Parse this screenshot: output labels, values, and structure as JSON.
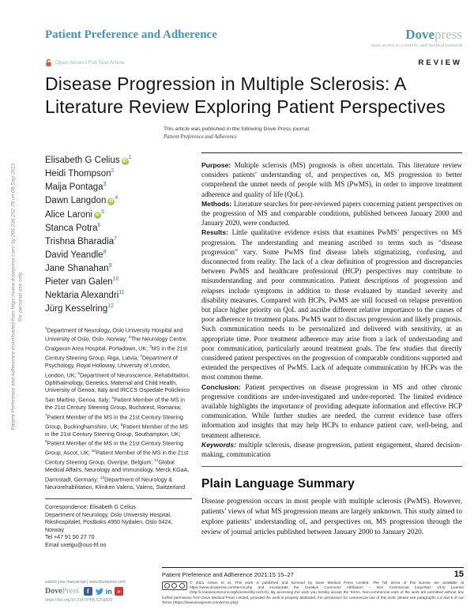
{
  "watermark": {
    "line1": "Patient Preference and Adherence downloaded from https://www.dovepress.com/ by 204.236.252.78 on 08-Sep-2021",
    "line2": "For personal use only."
  },
  "header": {
    "journal_name": "Patient Preference and Adherence",
    "brand_dove": "Dove",
    "brand_press": "press",
    "tagline": "open access to scientific and medical research",
    "open_access_label": "Open Access Full Text Article",
    "article_type": "REVIEW"
  },
  "article": {
    "title": "Disease Progression in Multiple Sclerosis: A Literature Review Exploring Patient Perspectives",
    "published_in_line": "This article was published in the following Dove Press journal:",
    "published_in_journal": "Patient Preference and Adherence"
  },
  "icons": {
    "orcid_text": "iD",
    "facebook_glyph": "f",
    "linkedin_glyph": "in"
  },
  "authors": [
    {
      "name": "Elisabeth G Celius",
      "sup": "1",
      "orcid": true
    },
    {
      "name": "Heidi Thompson",
      "sup": "2",
      "orcid": false
    },
    {
      "name": "Maija Pontaga",
      "sup": "3",
      "orcid": false
    },
    {
      "name": "Dawn Langdon",
      "sup": "4",
      "orcid": true
    },
    {
      "name": "Alice Laroni",
      "sup": "5",
      "orcid": true
    },
    {
      "name": "Stanca Potra",
      "sup": "6",
      "orcid": false
    },
    {
      "name": "Trishna Bharadia",
      "sup": "7",
      "orcid": false
    },
    {
      "name": "David Yeandle",
      "sup": "8",
      "orcid": false
    },
    {
      "name": "Jane Shanahan",
      "sup": "9",
      "orcid": false
    },
    {
      "name": "Pieter van Galen",
      "sup": "10",
      "orcid": false
    },
    {
      "name": "Nektaria Alexandri",
      "sup": "11",
      "orcid": false
    },
    {
      "name": "Jürg Kesselring",
      "sup": "12",
      "orcid": false
    }
  ],
  "affiliations": [
    {
      "sup": "1",
      "text": "Department of Neurology, Oslo University Hospital and University of Oslo, Oslo, Norway; "
    },
    {
      "sup": "2",
      "text": "The Neurology Centre, Craigavon Area Hospital, Portadown, UK; "
    },
    {
      "sup": "3",
      "text": "MS in the 21st Century Steering Group, Riga, Latvia; "
    },
    {
      "sup": "4",
      "text": "Department of Psychology, Royal Holloway, University of London, London, UK; "
    },
    {
      "sup": "5",
      "text": "Department of Neuroscience, Rehabilitation, Ophthalmology, Genetics, Maternal and Child Health, University of Genoa, Italy and IRCCS Ospedale Policlinico San Martino, Genoa, Italy; "
    },
    {
      "sup": "6",
      "text": "Patient Member of the MS in the 21st Century Steering Group, Bucharest, Romania; "
    },
    {
      "sup": "7",
      "text": "Patient Member of the MS in the 21st Century Steering Group, Buckinghamshire, UK; "
    },
    {
      "sup": "8",
      "text": "Patient Member of the MS in the 21st Century Steering Group, Southampton, UK; "
    },
    {
      "sup": "9",
      "text": "Patient Member of the MS in the 21st Century Steering Group, Ascot, UK; "
    },
    {
      "sup": "10",
      "text": "Patient Member of the MS in the 21st Century Steering Group, Overijse, Belgium; "
    },
    {
      "sup": "11",
      "text": "Global Medical Affairs, Neurology and Immunology, Merck KGaA, Darmstadt, Germany; "
    },
    {
      "sup": "12",
      "text": "Department of Neurology & Neurorehabilitation, Kliniken Valens, Valens, Switzerland"
    }
  ],
  "correspondence": {
    "lines": [
      "Correspondence: Elisabeth G Celius",
      "Department of Neurology, Oslo University Hospital, Rikshospitalet, Postboks 4950 Nydalen, Oslo 0424, Norway",
      "Tel +47 91 50 27 70",
      "Email uxelgu@ous-hf.no"
    ]
  },
  "abstract": {
    "sections": [
      {
        "label": "Purpose:",
        "italic_label": false,
        "text": "Multiple sclerosis (MS) prognosis is often uncertain. This literature review considers patients’ understanding of, and perspectives on, MS progression to better comprehend the unmet needs of people with MS (PwMS), in order to improve treatment adherence and quality of life (QoL)."
      },
      {
        "label": "Methods:",
        "italic_label": false,
        "text": "Literature searches for peer-reviewed papers concerning patient perspectives on the progression of MS and comparable conditions, published between January 2000 and January 2020, were conducted."
      },
      {
        "label": "Results:",
        "italic_label": false,
        "text": "Little qualitative evidence exists that examines PwMS’ perspectives on MS progression. The understanding and meaning ascribed to terms such as “disease progression” vary. Some PwMS find disease labels stigmatizing, confusing, and disconnected from reality. The lack of a clear definition of progression and discrepancies between PwMS and healthcare professional (HCP) perspectives may contribute to misunderstanding and poor communication. Patient descriptions of progression and relapses include symptoms in addition to those evaluated by standard severity and disability measures. Compared with HCPs, PwMS are still focused on relapse prevention but place higher priority on QoL and ascribe different relative importance to the causes of poor adherence to treatment plans. PwMS want to discuss progression and likely prognosis. Such communication needs to be personalized and delivered with sensitivity, at an appropriate time. Poor treatment adherence may arise from a lack of understanding and poor communication, particularly around treatment goals. The few studies that directly considered patient perspectives on the progression of comparable conditions supported and extended the perspectives of PwMS. Lack of adequate communication by HCPs was the most common theme."
      },
      {
        "label": "Conclusion:",
        "italic_label": false,
        "text": "Patient perspectives on disease progression in MS and other chronic progressive conditions are under-investigated and under-reported. The limited evidence available highlights the importance of providing adequate information and effective HCP communication. While further studies are needed, the current evidence base offers information and insights that may help HCPs to enhance patient care, well-being, and treatment adherence."
      },
      {
        "label": "Keywords:",
        "italic_label": true,
        "text": "multiple sclerosis, disease progression, patient engagement, shared decision-making, communication"
      }
    ]
  },
  "plain_language_summary": {
    "heading": "Plain Language Summary",
    "text": "Disease progression occurs in most people with multiple sclerosis (PwMS). However, patients’ views of what MS progression means are largely unknown. This study aimed to explore patients’ understanding of, and perspectives on, MS progression through the review of journal articles published between January 2000 to January 2020."
  },
  "footer": {
    "submit_line": "submit your manuscript | www.dovepress.com",
    "logo_dove": "Dove",
    "logo_press": "Press",
    "doi": "https://doi.org/10.2147/PPA.S268829",
    "citation": "Patient Preference and Adherence 2021:15 15–27",
    "page_number": "15",
    "license_text": "© 2021 Celius et al. This work is published and licensed by Dove Medical Press Limited. The full terms of this license are available at https://www.dovepress.com/terms.php and incorporate the Creative Commons Attribution – Non Commercial (unported, v3.0) License (http://creativecommons.org/licenses/by-nc/3.0/). By accessing the work you hereby accept the Terms. Non-commercial uses of the work are permitted without any further permission from Dove Medical Press Limited, provided the work is properly attributed. For permission for commercial use of this work, please see paragraphs 4.2 and 5 of our Terms (https://www.dovepress.com/terms.php)."
  },
  "colors": {
    "brand_blue": "#4293c6",
    "orcid_green": "#a6ce39",
    "open_access_orange": "#f0502d",
    "facebook_blue": "#3c5a99",
    "twitter_blue": "#1da1f2",
    "linkedin_blue": "#0077b5",
    "youtube_red": "#e62d27"
  }
}
